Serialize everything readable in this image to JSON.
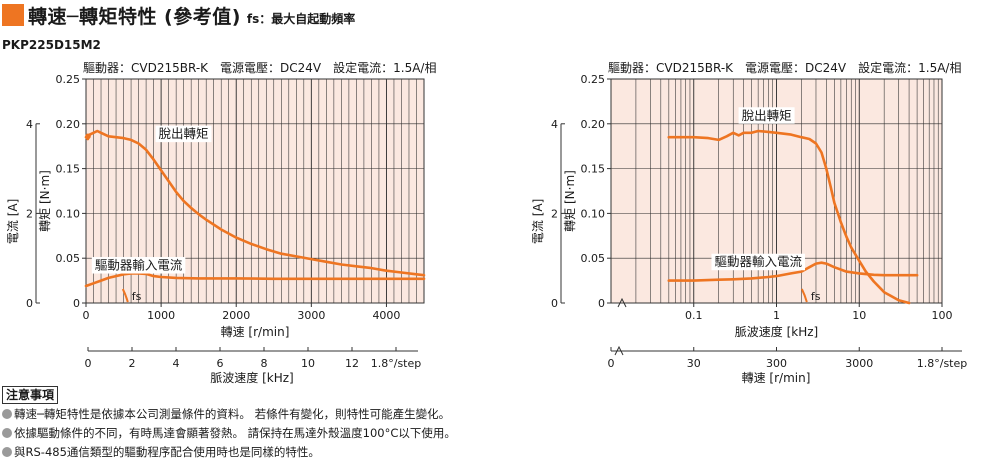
{
  "header": {
    "title": "轉速─轉矩特性 (參考值)",
    "subtitle": "fs：最大自起動頻率"
  },
  "model": "PKP225D15M2",
  "colors": {
    "accent": "#ee7522",
    "plot_bg": "#fbe8e0",
    "curve": "#ee7522"
  },
  "notes": {
    "heading": "注意事項",
    "items": [
      "轉速─轉矩特性是依據本公司測量條件的資料。 若條件有變化，則特性可能產生變化。",
      "依據驅動條件的不同，有時馬達會顯著發熱。 請保持在馬達外殼溫度100°C以下使用。",
      "與RS-485通信類型的驅動程序配合使用時也是同樣的特性。"
    ]
  },
  "chart_data": [
    {
      "type": "line",
      "xscale": "linear",
      "conditions": "驅動器：CVD215BR-K　電源電壓：DC24V　設定電流：1.5A/相",
      "xlabel": "轉速 [r/min]",
      "ylabel": "轉矩 [N·m]",
      "ylabel2": "電流 [A]",
      "x2label": "脈波速度 [kHz]",
      "xlim": [
        0,
        4500
      ],
      "ylim": [
        0,
        0.25
      ],
      "y2lim": [
        0,
        5
      ],
      "xticks": [
        0,
        1000,
        2000,
        3000,
        4000
      ],
      "yticks": [
        "0",
        "0.05",
        "0.10",
        "0.15",
        "0.20",
        "0.25"
      ],
      "y2ticks": [
        "0",
        "2",
        "4"
      ],
      "x2ticks": [
        {
          "value": 0,
          "label": "0"
        },
        {
          "value": 2,
          "label": "2"
        },
        {
          "value": 4,
          "label": "4"
        },
        {
          "value": 6,
          "label": "6"
        },
        {
          "value": 8,
          "label": "8"
        },
        {
          "value": 10,
          "label": "10"
        },
        {
          "value": 12,
          "label": "12"
        },
        {
          "value": 14,
          "label": "1.8°/step"
        }
      ],
      "x2lim": [
        0,
        15
      ],
      "series": [
        {
          "name": "脫出轉矩",
          "values": [
            [
              0,
              0.185
            ],
            [
              25,
              0.183
            ],
            [
              50,
              0.188
            ],
            [
              100,
              0.19
            ],
            [
              150,
              0.192
            ],
            [
              200,
              0.19
            ],
            [
              300,
              0.186
            ],
            [
              400,
              0.185
            ],
            [
              500,
              0.184
            ],
            [
              600,
              0.182
            ],
            [
              700,
              0.178
            ],
            [
              800,
              0.171
            ],
            [
              900,
              0.16
            ],
            [
              1000,
              0.148
            ],
            [
              1100,
              0.136
            ],
            [
              1200,
              0.124
            ],
            [
              1300,
              0.114
            ],
            [
              1400,
              0.106
            ],
            [
              1500,
              0.099
            ],
            [
              1600,
              0.093
            ],
            [
              1800,
              0.082
            ],
            [
              2000,
              0.073
            ],
            [
              2200,
              0.066
            ],
            [
              2400,
              0.06
            ],
            [
              2600,
              0.055
            ],
            [
              2800,
              0.052
            ],
            [
              3000,
              0.049
            ],
            [
              3200,
              0.046
            ],
            [
              3400,
              0.043
            ],
            [
              3600,
              0.041
            ],
            [
              3800,
              0.039
            ],
            [
              4000,
              0.036
            ],
            [
              4200,
              0.034
            ],
            [
              4400,
              0.032
            ],
            [
              4500,
              0.031
            ]
          ]
        },
        {
          "name": "驅動器輸入電流",
          "axis": "current",
          "values": [
            [
              0,
              0.38
            ],
            [
              100,
              0.44
            ],
            [
              200,
              0.5
            ],
            [
              300,
              0.56
            ],
            [
              400,
              0.6
            ],
            [
              500,
              0.64
            ],
            [
              600,
              0.66
            ],
            [
              700,
              0.66
            ],
            [
              800,
              0.65
            ],
            [
              900,
              0.6
            ],
            [
              1000,
              0.58
            ],
            [
              1200,
              0.56
            ],
            [
              1500,
              0.55
            ],
            [
              2000,
              0.55
            ],
            [
              2500,
              0.54
            ],
            [
              3000,
              0.54
            ],
            [
              3500,
              0.54
            ],
            [
              4000,
              0.54
            ],
            [
              4500,
              0.54
            ]
          ]
        }
      ],
      "annotations": [
        {
          "text": "脫出轉矩",
          "series": 0,
          "at": [
            500,
            0.184
          ]
        },
        {
          "text": "驅動器輸入電流",
          "series": 1,
          "at": [
            700,
            0.68
          ]
        },
        {
          "text": "fs",
          "at": [
            530,
            0
          ]
        }
      ]
    },
    {
      "type": "line",
      "xscale": "log",
      "conditions": "驅動器：CVD215BR-K　電源電壓：DC24V　設定電流：1.5A/相",
      "xlabel": "脈波速度 [kHz]",
      "ylabel": "轉矩 [N·m]",
      "ylabel2": "電流 [A]",
      "x2label": "轉速 [r/min]",
      "xlim": [
        0.01,
        100
      ],
      "ylim": [
        0,
        0.25
      ],
      "y2lim": [
        0,
        5
      ],
      "xticks": [
        {
          "value": 0.1,
          "label": "0.1"
        },
        {
          "value": 1,
          "label": "1"
        },
        {
          "value": 10,
          "label": "10"
        },
        {
          "value": 100,
          "label": "100"
        }
      ],
      "yticks": [
        "0",
        "0.05",
        "0.10",
        "0.15",
        "0.20",
        "0.25"
      ],
      "y2ticks": [
        "0",
        "2",
        "4"
      ],
      "x2ticks": [
        {
          "value": 0.1,
          "label": "30"
        },
        {
          "value": 1,
          "label": "300"
        },
        {
          "value": 10,
          "label": "3000"
        },
        {
          "value": 100,
          "label": "1.8°/step"
        }
      ],
      "series": [
        {
          "name": "脫出轉矩",
          "values": [
            [
              0.05,
              0.185
            ],
            [
              0.07,
              0.185
            ],
            [
              0.1,
              0.185
            ],
            [
              0.15,
              0.184
            ],
            [
              0.2,
              0.182
            ],
            [
              0.25,
              0.186
            ],
            [
              0.3,
              0.19
            ],
            [
              0.35,
              0.187
            ],
            [
              0.4,
              0.19
            ],
            [
              0.5,
              0.19
            ],
            [
              0.6,
              0.192
            ],
            [
              0.8,
              0.191
            ],
            [
              1.0,
              0.19
            ],
            [
              1.5,
              0.188
            ],
            [
              2.0,
              0.185
            ],
            [
              2.5,
              0.183
            ],
            [
              3.0,
              0.178
            ],
            [
              3.5,
              0.168
            ],
            [
              4.0,
              0.15
            ],
            [
              4.5,
              0.13
            ],
            [
              5.0,
              0.112
            ],
            [
              6.0,
              0.09
            ],
            [
              7.0,
              0.074
            ],
            [
              8.0,
              0.062
            ],
            [
              10.0,
              0.047
            ],
            [
              12.0,
              0.035
            ],
            [
              15.0,
              0.024
            ],
            [
              20.0,
              0.012
            ],
            [
              30.0,
              0.003
            ],
            [
              40.0,
              0.0
            ]
          ]
        },
        {
          "name": "驅動器輸入電流",
          "axis": "current",
          "values": [
            [
              0.05,
              0.5
            ],
            [
              0.1,
              0.5
            ],
            [
              0.2,
              0.52
            ],
            [
              0.3,
              0.53
            ],
            [
              0.5,
              0.55
            ],
            [
              0.8,
              0.58
            ],
            [
              1.0,
              0.6
            ],
            [
              1.5,
              0.66
            ],
            [
              2.0,
              0.7
            ],
            [
              2.5,
              0.8
            ],
            [
              3.0,
              0.88
            ],
            [
              3.5,
              0.9
            ],
            [
              4.0,
              0.88
            ],
            [
              5.0,
              0.8
            ],
            [
              7.0,
              0.7
            ],
            [
              10.0,
              0.66
            ],
            [
              15.0,
              0.63
            ],
            [
              20.0,
              0.62
            ],
            [
              30.0,
              0.62
            ],
            [
              50.0,
              0.62
            ]
          ]
        }
      ],
      "annotations": [
        {
          "text": "脫出轉矩",
          "series": 0,
          "at": [
            0.5,
            0.19
          ]
        },
        {
          "text": "驅動器輸入電流",
          "series": 1,
          "at": [
            0.3,
            0.62
          ]
        },
        {
          "text": "fs",
          "at": [
            2.2,
            0
          ]
        }
      ]
    }
  ]
}
